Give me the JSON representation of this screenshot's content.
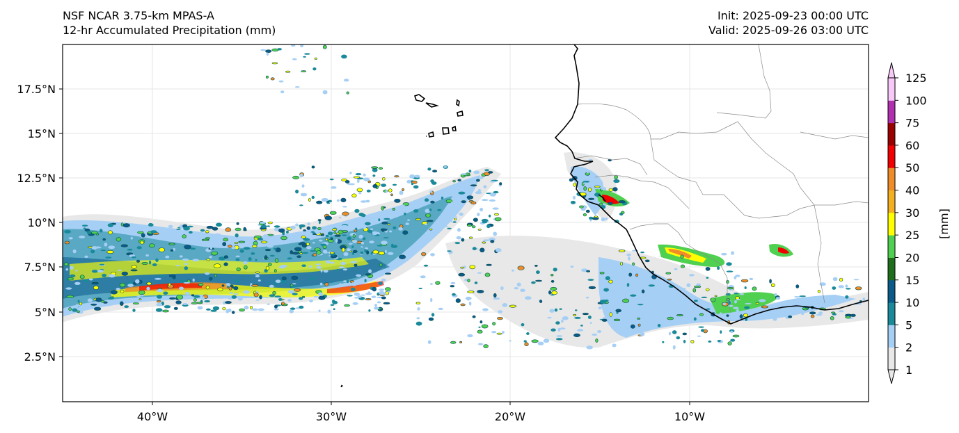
{
  "header": {
    "model": "NSF NCAR 3.75-km MPAS-A",
    "field": "12-hr Accumulated Precipitation (mm)",
    "init": "Init: 2025-09-23 00:00 UTC",
    "valid": "Valid: 2025-09-26 03:00 UTC"
  },
  "map": {
    "lat_labels": [
      "17.5°N",
      "15°N",
      "12.5°N",
      "10°N",
      "7.5°N",
      "5°N",
      "2.5°N"
    ],
    "lon_labels": [
      "40°W",
      "30°W",
      "20°W",
      "10°W"
    ],
    "gridlines": true
  },
  "colorbar": {
    "unit_label": "[mm]",
    "levels": [
      "1",
      "2",
      "5",
      "10",
      "15",
      "20",
      "25",
      "30",
      "40",
      "50",
      "60",
      "75",
      "100",
      "125"
    ],
    "colors": [
      "#e8e8e8",
      "#a6cff5",
      "#1a8a9a",
      "#0a5a8a",
      "#1e6e1e",
      "#50d050",
      "#ffff00",
      "#f5b020",
      "#f08c28",
      "#f00000",
      "#9b0000",
      "#b030b0",
      "#f8c8f8"
    ]
  },
  "colors": {
    "coast": "#000000",
    "borders": "#8a8a8a",
    "grid": "#e4e4e4"
  }
}
